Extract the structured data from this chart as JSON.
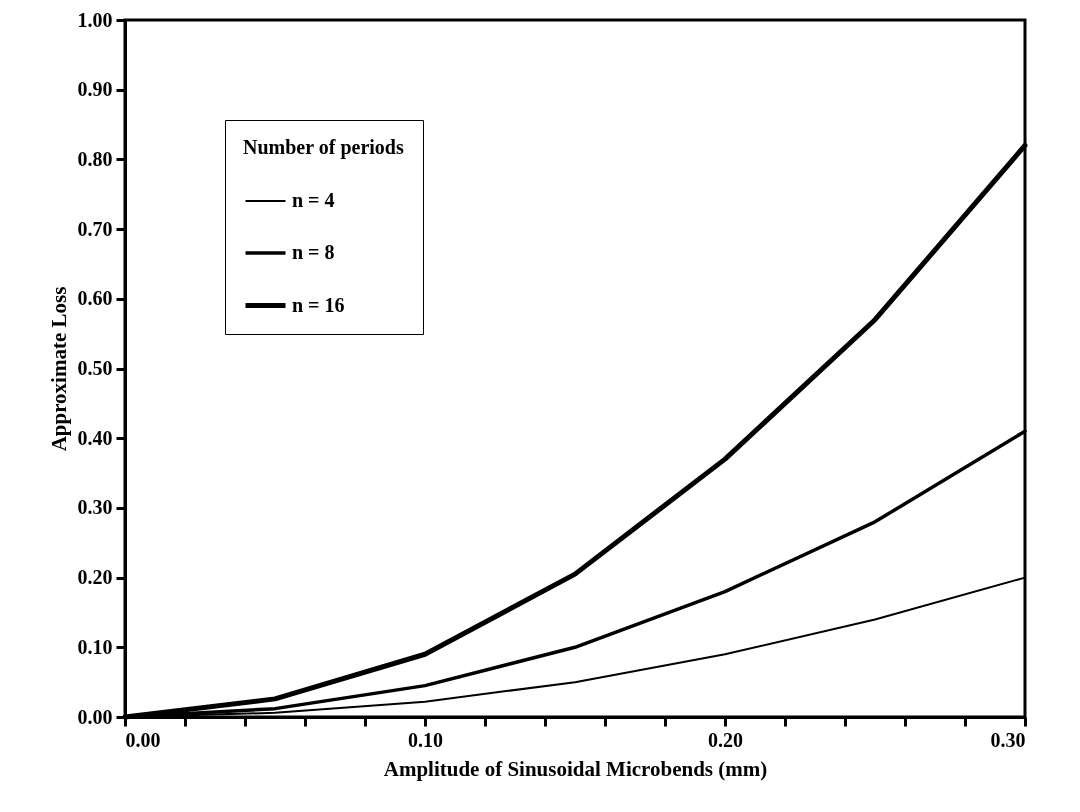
{
  "chart_data": {
    "type": "line",
    "xlabel": "Amplitude of Sinusoidal Microbends (mm)",
    "ylabel": "Approximate Loss",
    "legend_title": "Number of periods",
    "x": [
      0,
      0.05,
      0.1,
      0.15,
      0.2,
      0.25,
      0.3
    ],
    "series": [
      {
        "name": "n = 4",
        "color": "#000000",
        "values": [
          0,
          0.006,
          0.022,
          0.05,
          0.09,
          0.14,
          0.2
        ]
      },
      {
        "name": "n = 8",
        "color": "#000000",
        "values": [
          0,
          0.012,
          0.045,
          0.1,
          0.18,
          0.28,
          0.41
        ]
      },
      {
        "name": "n = 16",
        "color": "#000000",
        "values": [
          0,
          0.026,
          0.09,
          0.205,
          0.37,
          0.57,
          0.82
        ]
      }
    ],
    "xlim": [
      0,
      0.3
    ],
    "ylim": [
      0,
      1.0
    ],
    "xticks": [
      {
        "value": 0,
        "label": "0.00"
      },
      {
        "value": 0.02,
        "label": null
      },
      {
        "value": 0.04,
        "label": null
      },
      {
        "value": 0.06,
        "label": null
      },
      {
        "value": 0.08,
        "label": null
      },
      {
        "value": 0.1,
        "label": "0.10"
      },
      {
        "value": 0.12,
        "label": null
      },
      {
        "value": 0.14,
        "label": null
      },
      {
        "value": 0.16,
        "label": null
      },
      {
        "value": 0.18,
        "label": null
      },
      {
        "value": 0.2,
        "label": "0.20"
      },
      {
        "value": 0.22,
        "label": null
      },
      {
        "value": 0.24,
        "label": null
      },
      {
        "value": 0.26,
        "label": null
      },
      {
        "value": 0.28,
        "label": null
      },
      {
        "value": 0.3,
        "label": "0.30"
      }
    ],
    "yticks": [
      {
        "value": 0,
        "label": "0.00"
      },
      {
        "value": 0.1,
        "label": "0.10"
      },
      {
        "value": 0.2,
        "label": "0.20"
      },
      {
        "value": 0.3,
        "label": "0.30"
      },
      {
        "value": 0.4,
        "label": "0.40"
      },
      {
        "value": 0.5,
        "label": "0.50"
      },
      {
        "value": 0.6,
        "label": "0.60"
      },
      {
        "value": 0.7,
        "label": "0.70"
      },
      {
        "value": 0.8,
        "label": "0.80"
      },
      {
        "value": 0.9,
        "label": "0.90"
      },
      {
        "value": 1.0,
        "label": "1.00"
      }
    ],
    "grid": false,
    "legend": "top left",
    "marker": "none",
    "line_style": "solid"
  }
}
